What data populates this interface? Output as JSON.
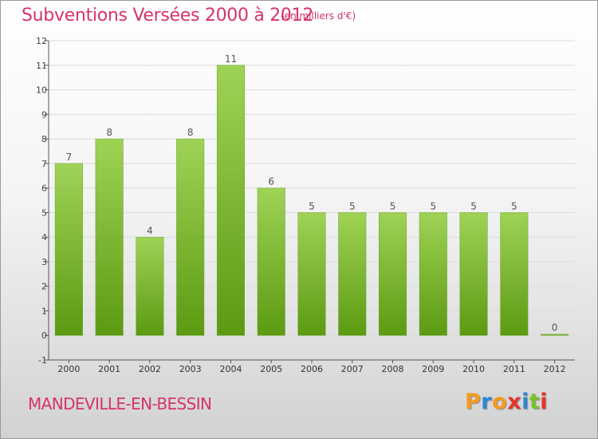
{
  "header": {
    "title": "Subventions Versées 2000 à 2012",
    "unit": "(en milliers d'€)"
  },
  "footer": {
    "commune": "MANDEVILLE-EN-BESSIN",
    "logo_letters": [
      "P",
      "r",
      "o",
      "x",
      "i",
      "t",
      "i"
    ],
    "logo_colors": [
      "#f39c1f",
      "#2e86d6",
      "#f39c1f",
      "#e8332a",
      "#2e86d6",
      "#7bbf2a",
      "#e8332a"
    ]
  },
  "colors": {
    "bar_top": "#9fd356",
    "bar_bottom": "#5c9a12",
    "axis": "#555555",
    "grid": "#dcdcdc",
    "title": "#d6336c"
  },
  "chart_data": {
    "type": "bar",
    "title": "Subventions Versées 2000 à 2012",
    "xlabel": "",
    "ylabel": "",
    "categories": [
      "2000",
      "2001",
      "2002",
      "2003",
      "2004",
      "2005",
      "2006",
      "2007",
      "2008",
      "2009",
      "2010",
      "2011",
      "2012"
    ],
    "values": [
      7,
      8,
      4,
      8,
      11,
      6,
      5,
      5,
      5,
      5,
      5,
      5,
      0
    ],
    "data_labels": [
      "7",
      "8",
      "4",
      "8",
      "11",
      "6",
      "5",
      "5",
      "5",
      "5",
      "5",
      "5",
      "0"
    ],
    "ylim": [
      -1,
      12
    ],
    "yticks": [
      -1,
      0,
      1,
      2,
      3,
      4,
      5,
      6,
      7,
      8,
      9,
      10,
      11,
      12
    ],
    "grid": true,
    "legend": "none"
  }
}
